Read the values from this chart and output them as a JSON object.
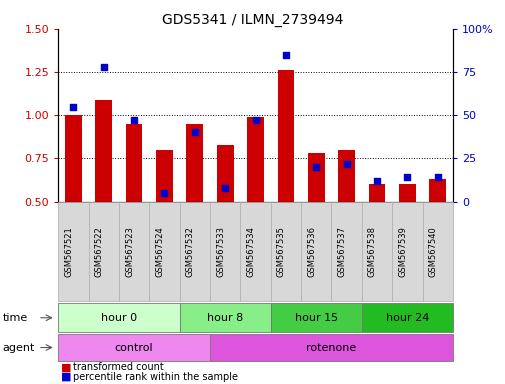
{
  "title": "GDS5341 / ILMN_2739494",
  "samples": [
    "GSM567521",
    "GSM567522",
    "GSM567523",
    "GSM567524",
    "GSM567532",
    "GSM567533",
    "GSM567534",
    "GSM567535",
    "GSM567536",
    "GSM567537",
    "GSM567538",
    "GSM567539",
    "GSM567540"
  ],
  "transformed_count": [
    1.0,
    1.09,
    0.95,
    0.8,
    0.95,
    0.83,
    0.99,
    1.26,
    0.78,
    0.8,
    0.6,
    0.6,
    0.63
  ],
  "percentile_rank": [
    55,
    78,
    47,
    5,
    40,
    8,
    47,
    85,
    20,
    22,
    12,
    14,
    14
  ],
  "ylim_left": [
    0.5,
    1.5
  ],
  "ylim_right": [
    0,
    100
  ],
  "yticks_left": [
    0.5,
    0.75,
    1.0,
    1.25,
    1.5
  ],
  "yticks_right": [
    0,
    25,
    50,
    75,
    100
  ],
  "bar_color": "#cc0000",
  "dot_color": "#0000cc",
  "bar_bottom": 0.5,
  "time_groups": [
    {
      "label": "hour 0",
      "start": 0,
      "end": 3,
      "color": "#ccffcc"
    },
    {
      "label": "hour 8",
      "start": 4,
      "end": 6,
      "color": "#88ee88"
    },
    {
      "label": "hour 15",
      "start": 7,
      "end": 9,
      "color": "#44cc44"
    },
    {
      "label": "hour 24",
      "start": 10,
      "end": 12,
      "color": "#22bb22"
    }
  ],
  "agent_groups": [
    {
      "label": "control",
      "start": 0,
      "end": 4,
      "color": "#ee88ee"
    },
    {
      "label": "rotenone",
      "start": 5,
      "end": 12,
      "color": "#dd55dd"
    }
  ],
  "legend_bar_label": "transformed count",
  "legend_dot_label": "percentile rank within the sample",
  "bar_color_hex": "#cc0000",
  "dot_color_hex": "#0000cc",
  "tick_color_left": "#cc0000",
  "tick_color_right": "#0000cc",
  "sample_bg_color": "#d8d8d8",
  "sample_border_color": "#aaaaaa"
}
